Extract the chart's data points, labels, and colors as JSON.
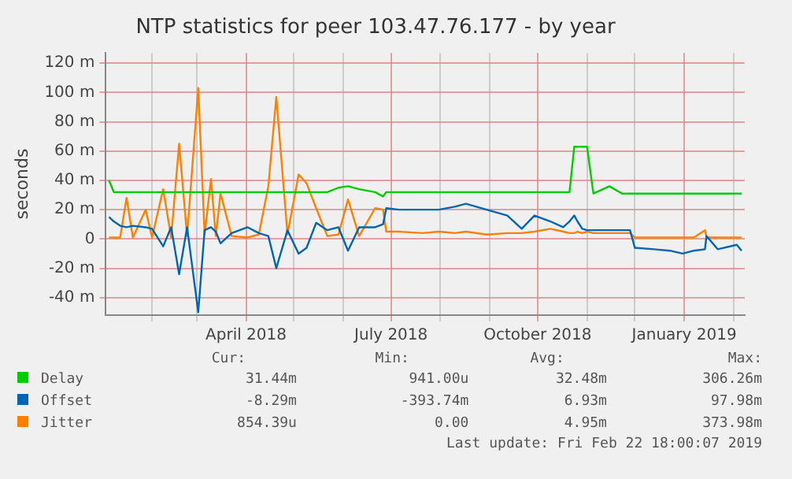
{
  "chart_data": {
    "type": "line",
    "title": "NTP statistics for peer 103.47.76.177 - by year",
    "ylabel": "seconds",
    "x": [
      "2018-01-05",
      "2018-01-08",
      "2018-01-12",
      "2018-01-16",
      "2018-01-20",
      "2018-01-28",
      "2018-02-01",
      "2018-02-08",
      "2018-02-13",
      "2018-02-18",
      "2018-02-23",
      "2018-03-02",
      "2018-03-06",
      "2018-03-10",
      "2018-03-13",
      "2018-03-16",
      "2018-03-23",
      "2018-04-02",
      "2018-04-09",
      "2018-04-15",
      "2018-04-20",
      "2018-04-27",
      "2018-05-04",
      "2018-05-09",
      "2018-05-15",
      "2018-05-22",
      "2018-05-29",
      "2018-06-04",
      "2018-06-11",
      "2018-06-21",
      "2018-06-26",
      "2018-06-28",
      "2018-07-06",
      "2018-07-21",
      "2018-07-31",
      "2018-08-10",
      "2018-08-17",
      "2018-08-30",
      "2018-09-12",
      "2018-09-21",
      "2018-09-29",
      "2018-10-09",
      "2018-10-17",
      "2018-10-21",
      "2018-10-24",
      "2018-10-26",
      "2018-10-29",
      "2018-11-01",
      "2018-11-05",
      "2018-11-15",
      "2018-11-23",
      "2018-11-28",
      "2018-12-01",
      "2018-12-13",
      "2018-12-23",
      "2018-12-31",
      "2019-01-07",
      "2019-01-14",
      "2019-01-15",
      "2019-01-22",
      "2019-02-03",
      "2019-02-06"
    ],
    "series": [
      {
        "name": "Delay",
        "color": "#00cc00",
        "values": [
          40,
          32,
          32,
          32,
          32,
          32,
          32,
          32,
          32,
          32,
          32,
          32,
          32,
          32,
          32,
          32,
          32,
          32,
          32,
          32,
          32,
          32,
          32,
          32,
          32,
          32,
          35,
          36,
          34,
          32,
          29,
          32,
          32,
          32,
          32,
          32,
          32,
          32,
          32,
          32,
          32,
          32,
          32,
          32,
          63,
          63,
          63,
          63,
          31,
          36,
          31,
          31,
          31,
          31,
          31,
          31,
          31,
          31,
          31,
          31,
          31,
          31
        ]
      },
      {
        "name": "Offset",
        "color": "#0066b3",
        "values": [
          15,
          12,
          9,
          8,
          9,
          8,
          7,
          -5,
          8,
          -24,
          8,
          -50,
          6,
          8,
          5,
          -3,
          4,
          8,
          4,
          2,
          -20,
          6,
          -10,
          -6,
          11,
          6,
          8,
          -8,
          8,
          8,
          10,
          21,
          20,
          20,
          20,
          22,
          24,
          20,
          16,
          7,
          16,
          12,
          8,
          12,
          16,
          12,
          7,
          6,
          6,
          6,
          6,
          6,
          -6,
          -7,
          -8,
          -10,
          -8,
          -7,
          2,
          -7,
          -4,
          -8
        ]
      },
      {
        "name": "Jitter",
        "color": "#ff8000",
        "values": [
          1,
          1,
          1,
          28,
          1,
          20,
          1,
          34,
          1,
          65,
          2,
          103,
          3,
          41,
          2,
          31,
          2,
          1,
          3,
          36,
          97,
          3,
          44,
          38,
          21,
          2,
          3,
          27,
          2,
          21,
          20,
          5,
          5,
          4,
          5,
          4,
          5,
          3,
          4,
          4,
          5,
          7,
          5,
          4,
          4,
          5,
          4,
          5,
          4,
          4,
          4,
          4,
          1,
          1,
          1,
          1,
          1,
          6,
          1,
          1,
          1,
          1
        ]
      }
    ],
    "xlim": [
      "2018-01-03",
      "2019-02-08"
    ],
    "xticks": [
      {
        "value": "2018-02-01",
        "label": null
      },
      {
        "value": "2018-03-01",
        "label": null
      },
      {
        "value": "2018-04-01",
        "label": "April 2018"
      },
      {
        "value": "2018-05-01",
        "label": null
      },
      {
        "value": "2018-06-01",
        "label": null
      },
      {
        "value": "2018-07-01",
        "label": "July 2018"
      },
      {
        "value": "2018-08-01",
        "label": null
      },
      {
        "value": "2018-09-01",
        "label": null
      },
      {
        "value": "2018-10-01",
        "label": "October 2018"
      },
      {
        "value": "2018-11-01",
        "label": null
      },
      {
        "value": "2018-12-01",
        "label": null
      },
      {
        "value": "2019-01-01",
        "label": "January 2019"
      },
      {
        "value": "2019-02-01",
        "label": null
      }
    ],
    "ylim": [
      -52,
      127
    ],
    "yticks": [
      {
        "value": -40,
        "label": "-40 m"
      },
      {
        "value": -20,
        "label": "-20 m"
      },
      0,
      {
        "value": 20,
        "label": "20 m"
      },
      {
        "value": 40,
        "label": "40 m"
      },
      {
        "value": 60,
        "label": "60 m"
      },
      {
        "value": 80,
        "label": "80 m"
      },
      {
        "value": 100,
        "label": "100 m"
      },
      {
        "value": 120,
        "label": "120 m"
      }
    ],
    "grid": true,
    "legend": "bottom",
    "marker": "none",
    "line_style": "solid",
    "annotations": [
      "Cur:",
      "Min:",
      "Avg:",
      "Max:",
      "31.44m",
      "941.00u",
      "32.48m",
      "306.26m",
      "-8.29m",
      "-393.74m",
      "6.93m",
      "97.98m",
      "854.39u",
      "0.00",
      "4.95m",
      "373.98m",
      "Last update: Fri Feb 22 18:00:07 2019"
    ]
  }
}
